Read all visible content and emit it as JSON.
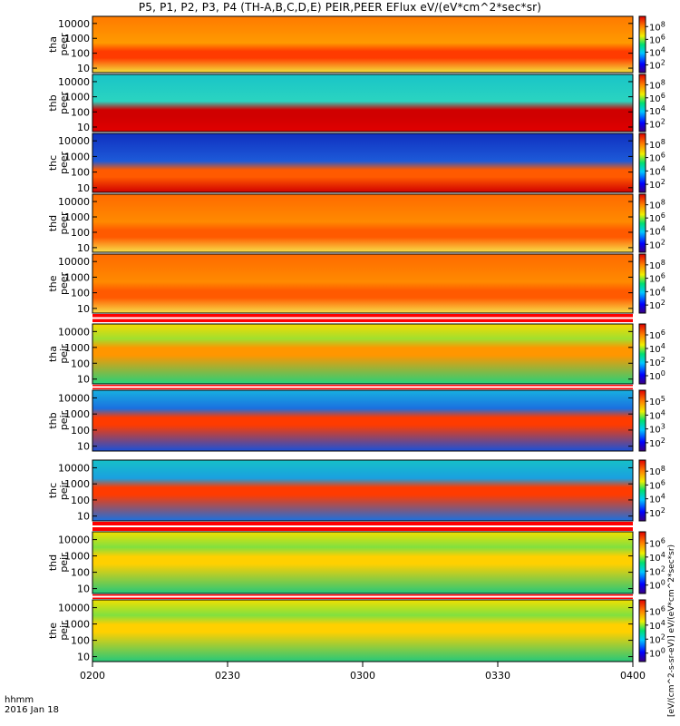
{
  "title": "P5, P1, P2, P3, P4 (TH-A,B,C,D,E) PEIR,PEER EFlux eV/(eV*cm^2*sec*sr)",
  "time_caption": {
    "line1": "hhmm",
    "line2": "2016 Jan 18"
  },
  "x_ticks": [
    "0200",
    "0230",
    "0300",
    "0330",
    "0400"
  ],
  "colorbar_caption": "[eV/(cm^2-s-sr-eV)] eV/(eV*cm^2*sec*sr)",
  "chart_data": {
    "type": "heatmap",
    "xlim": [
      "0200",
      "0400"
    ],
    "y_scale": "log",
    "ylim": [
      5,
      30000
    ],
    "y_ticks": [
      10,
      100,
      1000,
      10000
    ],
    "panels": [
      {
        "probe": "tha",
        "species": "peer",
        "label": [
          "tha",
          "peer"
        ],
        "cb_ticks": [
          "10^2",
          "10^4",
          "10^6",
          "10^8"
        ],
        "lo_color": "#f4e23c",
        "band_color": "#ff3b00",
        "hi_color": "#ff7a00",
        "bg_color": "#ff9a00"
      },
      {
        "probe": "thb",
        "species": "peer",
        "label": [
          "thb",
          "peer"
        ],
        "cb_ticks": [
          "10^2",
          "10^4",
          "10^6",
          "10^8"
        ],
        "lo_color": "#e00000",
        "band_color": "#d00000",
        "hi_color": "#19c4c8",
        "bg_color": "#2ad4c0"
      },
      {
        "probe": "thc",
        "species": "peer",
        "label": [
          "thc",
          "peer"
        ],
        "cb_ticks": [
          "10^2",
          "10^4",
          "10^6",
          "10^8"
        ],
        "lo_color": "#d00000",
        "band_color": "#ff5a00",
        "hi_color": "#1030c0",
        "bg_color": "#1d5ad8"
      },
      {
        "probe": "thd",
        "species": "peer",
        "label": [
          "thd",
          "peer"
        ],
        "cb_ticks": [
          "10^2",
          "10^4",
          "10^6",
          "10^8"
        ],
        "lo_color": "#f8e04a",
        "band_color": "#ff5a00",
        "hi_color": "#ff6a00",
        "bg_color": "#ff8a00"
      },
      {
        "probe": "the",
        "species": "peer",
        "label": [
          "the",
          "peer"
        ],
        "cb_ticks": [
          "10^2",
          "10^4",
          "10^6",
          "10^8"
        ],
        "lo_color": "#f8e04a",
        "band_color": "#ff5a00",
        "hi_color": "#ff6a00",
        "bg_color": "#ff8a00"
      },
      {
        "probe": "tha",
        "species": "peir",
        "label": [
          "tha",
          "peir"
        ],
        "cb_ticks": [
          "10^0",
          "10^2",
          "10^4",
          "10^6"
        ],
        "lo_color": "#25d37a",
        "band_color": "#ff9600",
        "hi_color": "#f6d800",
        "bg_color": "#a0e030"
      },
      {
        "probe": "thb",
        "species": "peir",
        "label": [
          "thb",
          "peir"
        ],
        "cb_ticks": [
          "10^2",
          "10^3",
          "10^4",
          "10^5"
        ],
        "lo_color": "#1a50d8",
        "band_color": "#ff3b00",
        "hi_color": "#18b0e0",
        "bg_color": "#1a70e0"
      },
      {
        "probe": "thc",
        "species": "peir",
        "label": [
          "thc",
          "peir"
        ],
        "cb_ticks": [
          "10^2",
          "10^4",
          "10^6",
          "10^8"
        ],
        "lo_color": "#1a70e0",
        "band_color": "#ff3b00",
        "hi_color": "#16c0c8",
        "bg_color": "#1aa0e0"
      },
      {
        "probe": "thd",
        "species": "peir",
        "label": [
          "thd",
          "peir"
        ],
        "cb_ticks": [
          "10^0",
          "10^2",
          "10^4",
          "10^6"
        ],
        "lo_color": "#25c87a",
        "band_color": "#ffd000",
        "hi_color": "#f2e000",
        "bg_color": "#80e040"
      },
      {
        "probe": "the",
        "species": "peir",
        "label": [
          "the",
          "peir"
        ],
        "cb_ticks": [
          "10^0",
          "10^2",
          "10^4",
          "10^6"
        ],
        "lo_color": "#25c87a",
        "band_color": "#ffd000",
        "hi_color": "#f2e000",
        "bg_color": "#80e040"
      }
    ]
  }
}
